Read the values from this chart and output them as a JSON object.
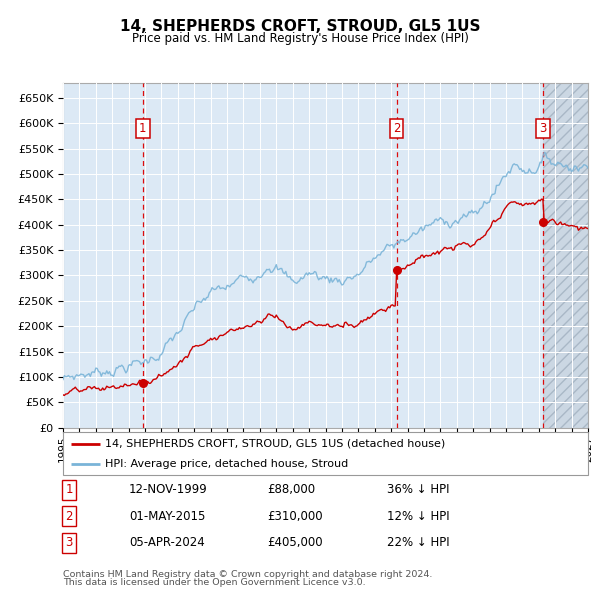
{
  "title": "14, SHEPHERDS CROFT, STROUD, GL5 1US",
  "subtitle": "Price paid vs. HM Land Registry's House Price Index (HPI)",
  "legend_line1": "14, SHEPHERDS CROFT, STROUD, GL5 1US (detached house)",
  "legend_line2": "HPI: Average price, detached house, Stroud",
  "footer1": "Contains HM Land Registry data © Crown copyright and database right 2024.",
  "footer2": "This data is licensed under the Open Government Licence v3.0.",
  "transactions": [
    {
      "num": 1,
      "date": "12-NOV-1999",
      "price": "£88,000",
      "hpi_rel": "36% ↓ HPI",
      "year": 1999.87,
      "price_val": 88000
    },
    {
      "num": 2,
      "date": "01-MAY-2015",
      "price": "£310,000",
      "hpi_rel": "12% ↓ HPI",
      "year": 2015.33,
      "price_val": 310000
    },
    {
      "num": 3,
      "date": "05-APR-2024",
      "price": "£405,000",
      "hpi_rel": "22% ↓ HPI",
      "year": 2024.26,
      "price_val": 405000
    }
  ],
  "ylim": [
    0,
    680000
  ],
  "xlim_start": 1995.0,
  "xlim_end": 2027.0,
  "hpi_color": "#7ab4d8",
  "price_color": "#cc0000",
  "fig_bg": "#ffffff",
  "plot_bg": "#dce9f5",
  "grid_color": "#ffffff",
  "vline_color": "#dd0000",
  "hatch_bg": "#c8d4e0"
}
